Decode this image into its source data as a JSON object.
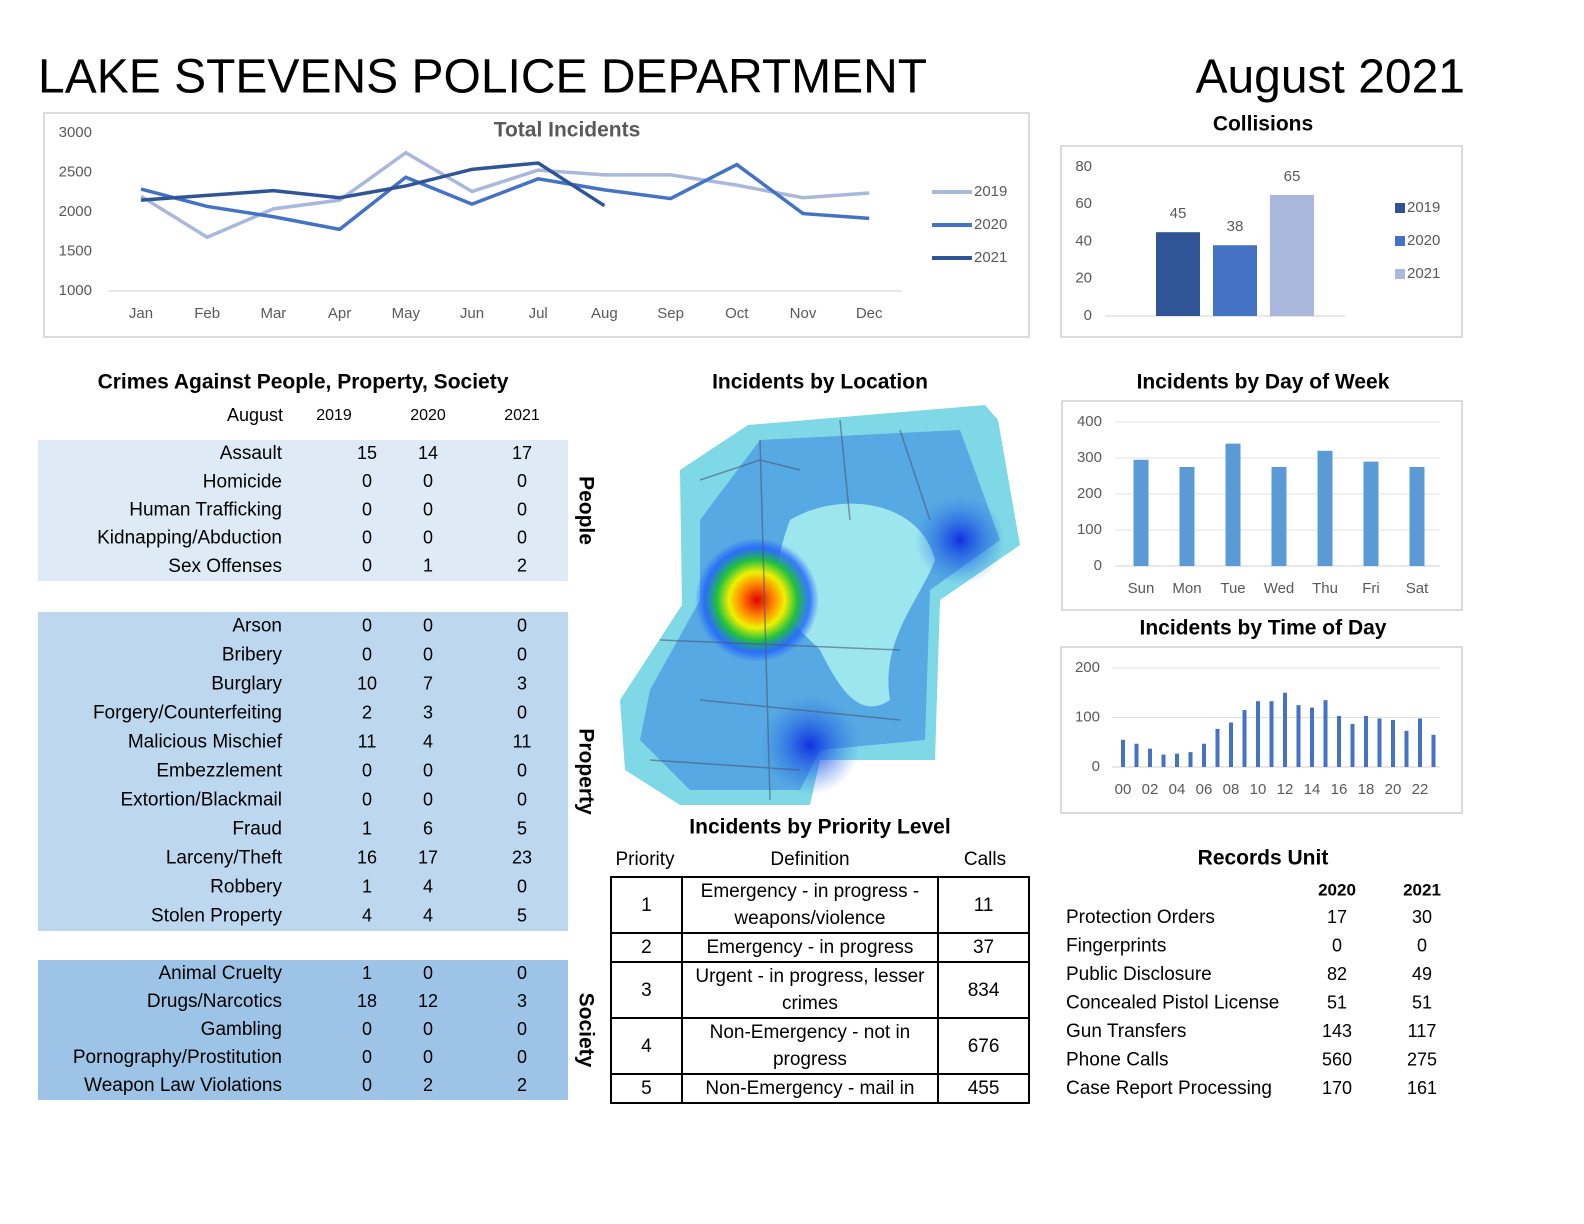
{
  "header": {
    "title": "LAKE STEVENS POLICE DEPARTMENT",
    "date": "August 2021"
  },
  "chart_data": [
    {
      "type": "line",
      "title": "Total Incidents",
      "categories": [
        "Jan",
        "Feb",
        "Mar",
        "Apr",
        "May",
        "Jun",
        "Jul",
        "Aug",
        "Sep",
        "Oct",
        "Nov",
        "Dec"
      ],
      "series": [
        {
          "name": "2019",
          "color": "#a9b8dc",
          "values": [
            2200,
            1680,
            2040,
            2150,
            2750,
            2260,
            2530,
            2470,
            2470,
            2340,
            2180,
            2240
          ]
        },
        {
          "name": "2020",
          "color": "#4472c4",
          "values": [
            2290,
            2070,
            1940,
            1780,
            2440,
            2100,
            2420,
            2280,
            2170,
            2600,
            1980,
            1920
          ]
        },
        {
          "name": "2021",
          "color": "#2f5597",
          "values": [
            2150,
            2210,
            2270,
            2180,
            2330,
            2540,
            2620,
            2080,
            null,
            null,
            null,
            null
          ]
        }
      ],
      "ylim": [
        1000,
        3000
      ],
      "yticks": [
        1000,
        1500,
        2000,
        2500,
        3000
      ],
      "grid": false,
      "legend": "right"
    },
    {
      "type": "bar",
      "title": "Collisions",
      "categories": [
        null
      ],
      "series": [
        {
          "name": "2019",
          "color": "#2f5597",
          "values": [
            45
          ]
        },
        {
          "name": "2020",
          "color": "#4472c4",
          "values": [
            38
          ]
        },
        {
          "name": "2021",
          "color": "#a9b8dc",
          "values": [
            65
          ]
        }
      ],
      "ylim": [
        0,
        80
      ],
      "yticks": [
        0,
        20,
        40,
        60,
        80
      ],
      "grid": false,
      "legend": "right",
      "data_labels": true
    },
    {
      "type": "bar",
      "title": "Incidents by Day of Week",
      "categories": [
        "Sun",
        "Mon",
        "Tue",
        "Wed",
        "Thu",
        "Fri",
        "Sat"
      ],
      "values": [
        295,
        275,
        340,
        275,
        320,
        290,
        275
      ],
      "color": "#5b9bd5",
      "ylim": [
        0,
        400
      ],
      "yticks": [
        0,
        100,
        200,
        300,
        400
      ],
      "grid": true
    },
    {
      "type": "bar",
      "title": "Incidents by Time of Day",
      "categories": [
        "00",
        null,
        "02",
        null,
        "04",
        null,
        "06",
        null,
        "08",
        null,
        "10",
        null,
        "12",
        null,
        "14",
        null,
        "16",
        null,
        "18",
        null,
        "20",
        null,
        "22",
        null
      ],
      "values": [
        55,
        47,
        37,
        25,
        27,
        30,
        47,
        77,
        90,
        115,
        133,
        133,
        150,
        125,
        120,
        135,
        103,
        87,
        103,
        98,
        95,
        73,
        98,
        65
      ],
      "color": "#4472c4",
      "ylim": [
        0,
        200
      ],
      "yticks": [
        0,
        100,
        200
      ],
      "grid": true
    }
  ],
  "crimes": {
    "title": "Crimes Against People, Property, Society",
    "columns": [
      "August",
      "2019",
      "2020",
      "2021"
    ],
    "groups": [
      {
        "label": "People",
        "rows": [
          [
            "Assault",
            15,
            14,
            17
          ],
          [
            "Homicide",
            0,
            0,
            0
          ],
          [
            "Human Trafficking",
            0,
            0,
            0
          ],
          [
            "Kidnapping/Abduction",
            0,
            0,
            0
          ],
          [
            "Sex Offenses",
            0,
            1,
            2
          ]
        ]
      },
      {
        "label": "Property",
        "rows": [
          [
            "Arson",
            0,
            0,
            0
          ],
          [
            "Bribery",
            0,
            0,
            0
          ],
          [
            "Burglary",
            10,
            7,
            3
          ],
          [
            "Forgery/Counterfeiting",
            2,
            3,
            0
          ],
          [
            "Malicious Mischief",
            11,
            4,
            11
          ],
          [
            "Embezzlement",
            0,
            0,
            0
          ],
          [
            "Extortion/Blackmail",
            0,
            0,
            0
          ],
          [
            "Fraud",
            1,
            6,
            5
          ],
          [
            "Larceny/Theft",
            16,
            17,
            23
          ],
          [
            "Robbery",
            1,
            4,
            0
          ],
          [
            "Stolen Property",
            4,
            4,
            5
          ]
        ]
      },
      {
        "label": "Society",
        "rows": [
          [
            "Animal Cruelty",
            1,
            0,
            0
          ],
          [
            "Drugs/Narcotics",
            18,
            12,
            3
          ],
          [
            "Gambling",
            0,
            0,
            0
          ],
          [
            "Pornography/Prostitution",
            0,
            0,
            0
          ],
          [
            "Weapon Law Violations",
            0,
            2,
            2
          ]
        ]
      }
    ]
  },
  "map": {
    "title": "Incidents by Location"
  },
  "priority": {
    "title": "Incidents by Priority Level",
    "columns": [
      "Priority",
      "Definition",
      "Calls"
    ],
    "rows": [
      [
        1,
        "Emergency - in progress - weapons/violence",
        11
      ],
      [
        2,
        "Emergency - in progress",
        37
      ],
      [
        3,
        "Urgent - in progress, lesser crimes",
        834
      ],
      [
        4,
        "Non-Emergency - not in progress",
        676
      ],
      [
        5,
        "Non-Emergency - mail in",
        455
      ]
    ]
  },
  "records": {
    "title": "Records Unit",
    "columns": [
      "2020",
      "2021"
    ],
    "rows": [
      [
        "Protection Orders",
        17,
        30
      ],
      [
        "Fingerprints",
        0,
        0
      ],
      [
        "Public Disclosure",
        82,
        49
      ],
      [
        "Concealed Pistol License",
        51,
        51
      ],
      [
        "Gun Transfers",
        143,
        117
      ],
      [
        "Phone Calls",
        560,
        275
      ],
      [
        "Case Report Processing",
        170,
        161
      ]
    ]
  }
}
